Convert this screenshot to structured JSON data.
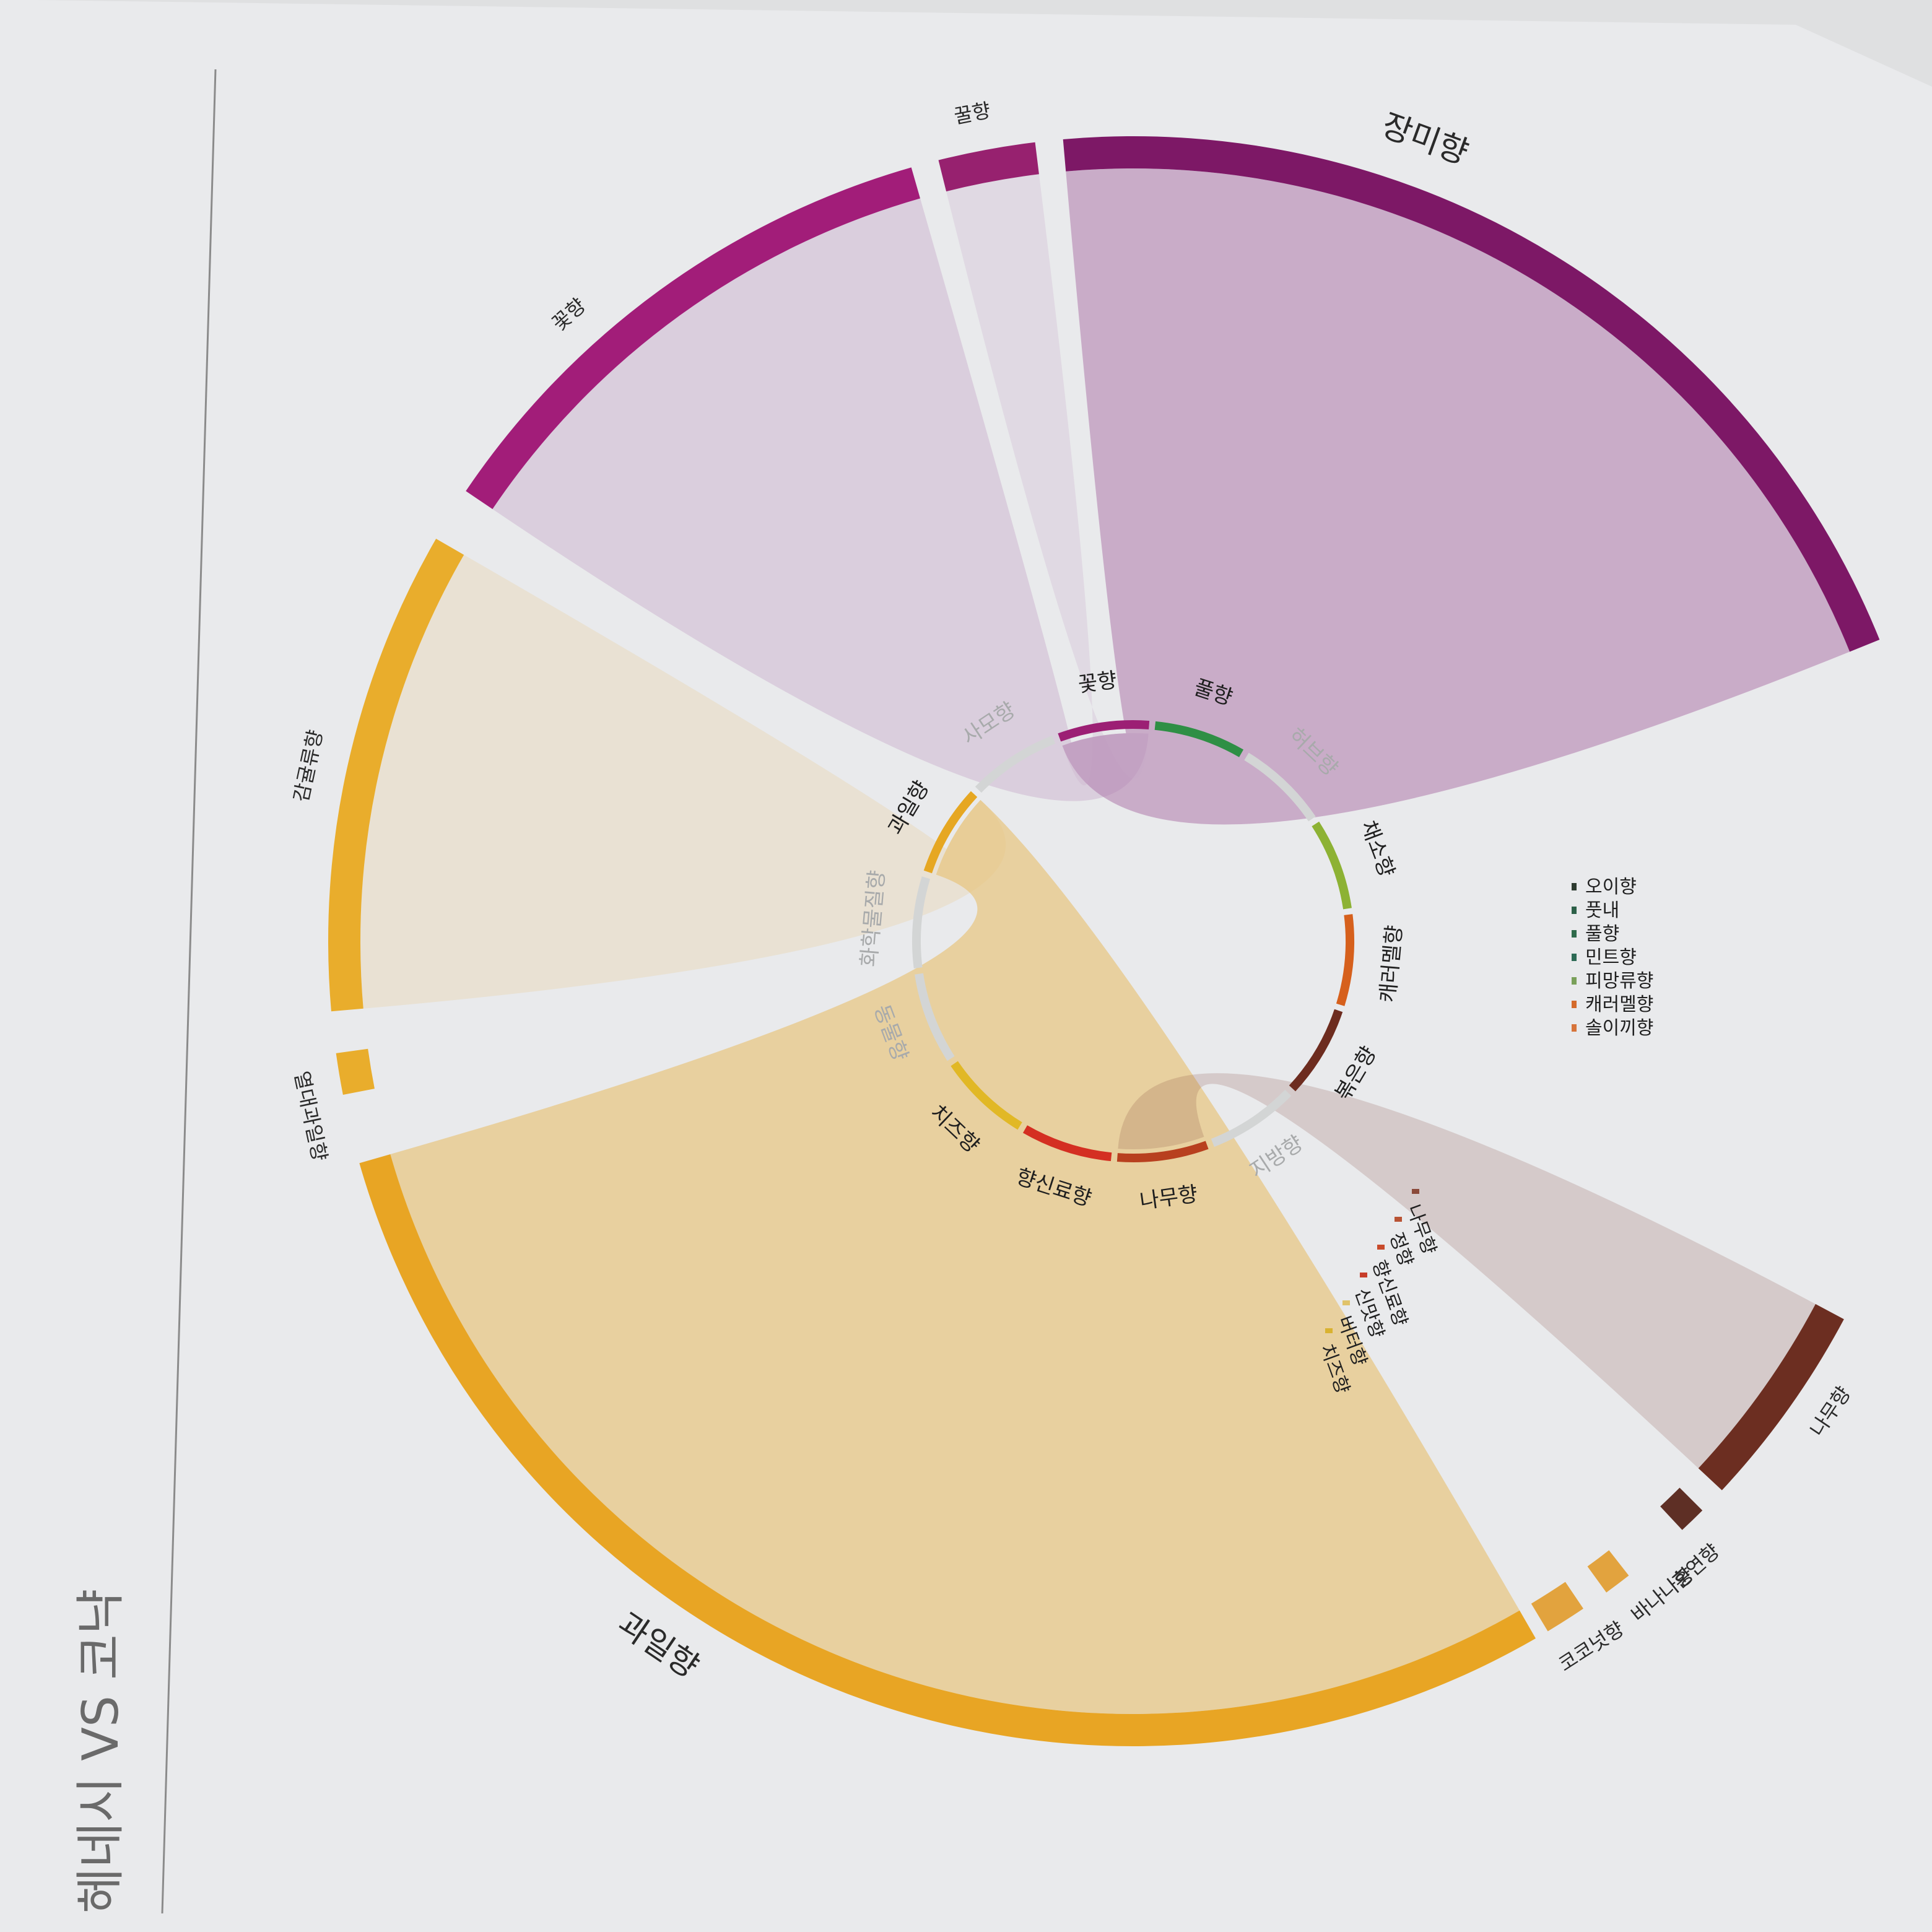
{
  "title": "헤네시 VS 코냑",
  "outer_groups": [
    {
      "id": "rose",
      "label": "장미향",
      "color": "#7d1866",
      "value": 32.0
    },
    {
      "id": "flower",
      "label": "꽃향",
      "color": "#a21d79",
      "value": 11.0
    },
    {
      "id": "tea",
      "label": "꿀향",
      "color": "#97216f",
      "value": 3.5
    },
    {
      "id": "fruit",
      "label": "과일향",
      "color": "#e8a524",
      "value": 56.0
    },
    {
      "id": "citrus",
      "label": "감귤류향",
      "color": "#e9ad2c",
      "value": 12.0
    },
    {
      "id": "tropical",
      "label": "열대과일향",
      "color": "#e9ad2c",
      "value": 1.0
    },
    {
      "id": "coconut",
      "label": "코코넛향",
      "color": "#e2a33e",
      "value": 1.6
    },
    {
      "id": "banana",
      "label": "바나나향",
      "color": "#e2a33e",
      "value": 0.6
    },
    {
      "id": "wood",
      "label": "나무향",
      "color": "#6c2e21",
      "value": 6.0
    },
    {
      "id": "smoke",
      "label": "훈연향",
      "color": "#5e2f25",
      "value": 0.6
    }
  ],
  "small_items_right": [
    {
      "label": "오이향",
      "color": "#2d3b30"
    },
    {
      "label": "풋내",
      "color": "#2c6048"
    },
    {
      "label": "풀향",
      "color": "#2f6b4b"
    },
    {
      "label": "민트향",
      "color": "#2d6a55"
    },
    {
      "label": "피망류향",
      "color": "#79a05a"
    },
    {
      "label": "캐러멜향",
      "color": "#d46a2b"
    },
    {
      "label": "솔이끼향",
      "color": "#d7743a"
    }
  ],
  "small_items_bottom": [
    {
      "label": "치즈향",
      "color": "#d9b230"
    },
    {
      "label": "버터향",
      "color": "#e0c36a"
    },
    {
      "label": "신맛향",
      "color": "#c73d2a"
    },
    {
      "label": "향신료향",
      "color": "#c84a2b"
    },
    {
      "label": "정향",
      "color": "#b95334"
    },
    {
      "label": "나무향",
      "color": "#8b4a3a"
    }
  ],
  "inner_categories": [
    {
      "label": "풀향",
      "color": "#2f8f45",
      "active": true
    },
    {
      "label": "허브향",
      "color": "#d3d5d5",
      "active": false
    },
    {
      "label": "채소향",
      "color": "#8db234",
      "active": true
    },
    {
      "label": "캐러멜향",
      "color": "#d6601c",
      "active": true
    },
    {
      "label": "볶은향",
      "color": "#6d2c1f",
      "active": true
    },
    {
      "label": "지방향",
      "color": "#d3d5d5",
      "active": false
    },
    {
      "label": "나무향",
      "color": "#b8401f",
      "active": true
    },
    {
      "label": "향신료향",
      "color": "#d42f22",
      "active": true
    },
    {
      "label": "치즈향",
      "color": "#e1b826",
      "active": true
    },
    {
      "label": "동물향",
      "color": "#d3d5d5",
      "active": false
    },
    {
      "label": "화학물질향",
      "color": "#d3d5d5",
      "active": false
    },
    {
      "label": "과일향",
      "color": "#e6a722",
      "active": true
    },
    {
      "label": "사모향",
      "color": "#d3d5d5",
      "active": false
    },
    {
      "label": "꽃향",
      "color": "#9c1f74",
      "active": true
    }
  ],
  "colors": {
    "paper": "#e7e8ea",
    "inner_gray": "#d3d5d5",
    "ribbon_purple": "#8e3a88",
    "ribbon_orange": "#e7ab35",
    "ribbon_brown": "#7b3b30"
  }
}
